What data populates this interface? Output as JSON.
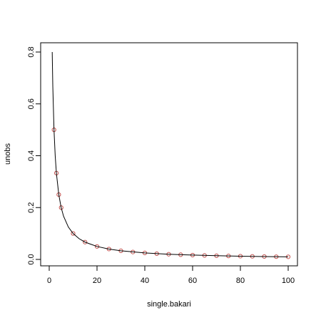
{
  "chart_data": {
    "type": "scatter",
    "xlabel": "single.bakari",
    "ylabel": "unobs",
    "xlim": [
      0,
      100
    ],
    "ylim": [
      0,
      0.8
    ],
    "x_ticks": [
      0,
      20,
      40,
      60,
      80,
      100
    ],
    "y_ticks": [
      0.0,
      0.2,
      0.4,
      0.6,
      0.8
    ],
    "x_tick_labels": [
      "0",
      "20",
      "40",
      "60",
      "80",
      "100"
    ],
    "y_tick_labels": [
      "0.0",
      "0.2",
      "0.4",
      "0.6",
      "0.8"
    ],
    "grid": false,
    "series": [
      {
        "type": "scatter",
        "color": "#c0504d",
        "marker": "open-circle",
        "x": [
          2,
          3,
          4,
          5,
          10,
          15,
          20,
          25,
          30,
          35,
          40,
          45,
          50,
          55,
          60,
          65,
          70,
          75,
          80,
          85,
          90,
          95,
          100
        ],
        "y": [
          0.5,
          0.333,
          0.25,
          0.2,
          0.1,
          0.0667,
          0.05,
          0.04,
          0.0333,
          0.0286,
          0.025,
          0.0222,
          0.02,
          0.0182,
          0.0167,
          0.0154,
          0.0143,
          0.0133,
          0.0125,
          0.0118,
          0.0111,
          0.0105,
          0.01
        ]
      },
      {
        "type": "line",
        "color": "#000000",
        "x": [
          1.25,
          1.5,
          2,
          2.5,
          3,
          4,
          5,
          6,
          8,
          10,
          12.5,
          15,
          20,
          25,
          30,
          40,
          50,
          60,
          70,
          80,
          90,
          100
        ],
        "y": [
          0.8,
          0.667,
          0.5,
          0.4,
          0.333,
          0.25,
          0.2,
          0.1667,
          0.125,
          0.1,
          0.08,
          0.0667,
          0.05,
          0.04,
          0.0333,
          0.025,
          0.02,
          0.0167,
          0.0143,
          0.0125,
          0.0111,
          0.01
        ]
      }
    ]
  }
}
